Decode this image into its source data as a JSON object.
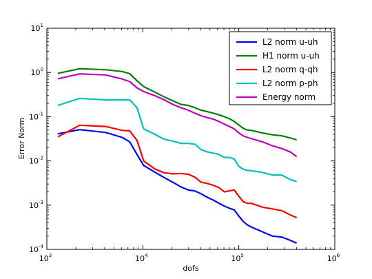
{
  "chart_data": {
    "type": "line",
    "xscale": "log",
    "yscale": "log",
    "xlabel": "dofs",
    "ylabel": "Error Norm",
    "xlim": [
      1000,
      1000000
    ],
    "ylim": [
      0.0001,
      10
    ],
    "grid": false,
    "legend_position": "top-right",
    "x_ticks": [
      {
        "base": "10",
        "exp": "3",
        "value": 1000
      },
      {
        "base": "10",
        "exp": "4",
        "value": 10000
      },
      {
        "base": "10",
        "exp": "5",
        "value": 100000
      },
      {
        "base": "10",
        "exp": "6",
        "value": 1000000
      }
    ],
    "y_ticks": [
      {
        "base": "10",
        "exp": "-4",
        "value": 0.0001
      },
      {
        "base": "10",
        "exp": "-3",
        "value": 0.001
      },
      {
        "base": "10",
        "exp": "-2",
        "value": 0.01
      },
      {
        "base": "10",
        "exp": "-1",
        "value": 0.1
      },
      {
        "base": "10",
        "exp": "0",
        "value": 1
      },
      {
        "base": "10",
        "exp": "1",
        "value": 10
      }
    ],
    "x": [
      1300,
      2200,
      4100,
      6100,
      7300,
      8700,
      10200,
      13300,
      16700,
      20500,
      24900,
      29700,
      34800,
      40500,
      47000,
      54300,
      62200,
      70700,
      79800,
      89500,
      99900,
      110800,
      122500,
      135000,
      176000,
      224000,
      280000,
      344000,
      400000
    ],
    "series": [
      {
        "name": "L2 norm u-uh",
        "color": "#0000ff",
        "values": [
          0.041,
          0.051,
          0.044,
          0.034,
          0.027,
          0.014,
          0.0079,
          0.0056,
          0.0042,
          0.0033,
          0.0026,
          0.0022,
          0.0021,
          0.0018,
          0.0015,
          0.0013,
          0.0011,
          0.00095,
          0.00085,
          0.00078,
          0.00057,
          0.00043,
          0.00036,
          0.00032,
          0.00025,
          0.0002,
          0.00019,
          0.00016,
          0.000138
        ]
      },
      {
        "name": "H1 norm u-uh",
        "color": "#008000",
        "values": [
          0.95,
          1.22,
          1.15,
          1.05,
          0.94,
          0.65,
          0.48,
          0.36,
          0.28,
          0.23,
          0.19,
          0.18,
          0.16,
          0.14,
          0.13,
          0.12,
          0.11,
          0.1,
          0.09,
          0.078,
          0.065,
          0.055,
          0.05,
          0.049,
          0.043,
          0.039,
          0.037,
          0.033,
          0.03
        ]
      },
      {
        "name": "L2 norm q-qh",
        "color": "#ff0000",
        "values": [
          0.035,
          0.064,
          0.06,
          0.049,
          0.048,
          0.029,
          0.01,
          0.0066,
          0.0054,
          0.0051,
          0.0052,
          0.005,
          0.0043,
          0.0033,
          0.0031,
          0.0028,
          0.0025,
          0.002,
          0.0021,
          0.0022,
          0.0016,
          0.0012,
          0.0011,
          0.0011,
          0.0009,
          0.00082,
          0.00075,
          0.0006,
          0.00052
        ]
      },
      {
        "name": "L2 norm p-ph",
        "color": "#00bfbf",
        "values": [
          0.18,
          0.26,
          0.24,
          0.24,
          0.24,
          0.16,
          0.053,
          0.04,
          0.031,
          0.028,
          0.025,
          0.025,
          0.024,
          0.018,
          0.016,
          0.015,
          0.014,
          0.012,
          0.012,
          0.011,
          0.0076,
          0.0065,
          0.0061,
          0.006,
          0.0055,
          0.0048,
          0.0048,
          0.0038,
          0.0034
        ]
      },
      {
        "name": "Energy norm",
        "color": "#bf00bf",
        "values": [
          0.72,
          0.93,
          0.88,
          0.71,
          0.62,
          0.45,
          0.37,
          0.3,
          0.24,
          0.19,
          0.16,
          0.14,
          0.12,
          0.105,
          0.095,
          0.088,
          0.078,
          0.068,
          0.06,
          0.053,
          0.043,
          0.037,
          0.034,
          0.032,
          0.027,
          0.022,
          0.019,
          0.016,
          0.0125
        ]
      }
    ]
  }
}
